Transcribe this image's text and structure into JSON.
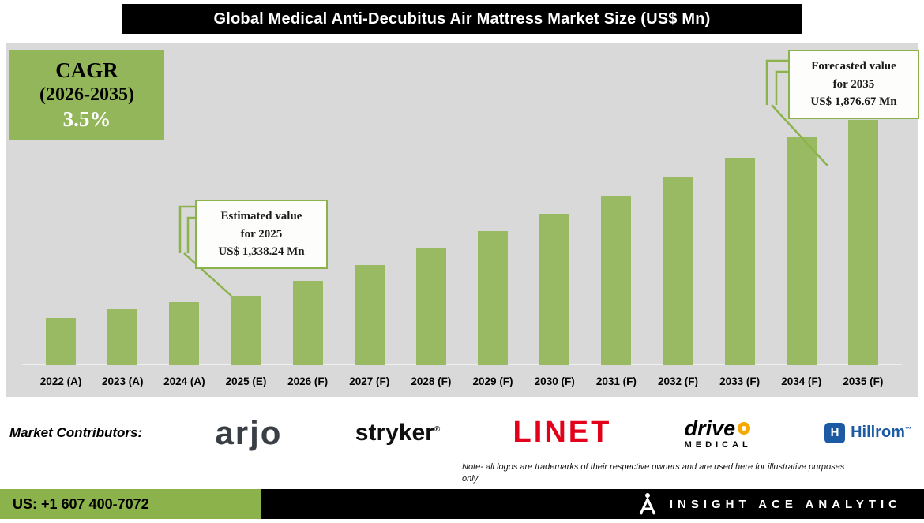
{
  "title": "Global Medical Anti-Decubitus Air Mattress Market Size (US$ Mn)",
  "cagr": {
    "label": "CAGR",
    "period": "(2026-2035)",
    "value": "3.5%"
  },
  "callouts": {
    "estimated": {
      "title": "Estimated value",
      "subtitle": "for 2025",
      "value": "US$ 1,338.24 Mn"
    },
    "forecasted": {
      "title": "Forecasted value",
      "subtitle": "for 2035",
      "value": "US$ 1,876.67 Mn"
    }
  },
  "chart_data": {
    "type": "bar",
    "title": "Global Medical Anti-Decubitus Air Mattress Market Size (US$ Mn)",
    "categories": [
      "2022 (A)",
      "2023 (A)",
      "2024 (A)",
      "2025 (E)",
      "2026 (F)",
      "2027 (F)",
      "2028 (F)",
      "2029 (F)",
      "2030 (F)",
      "2031 (F)",
      "2032 (F)",
      "2033 (F)",
      "2034 (F)",
      "2035 (F)"
    ],
    "values": [
      1270.5,
      1298.0,
      1318.5,
      1338.24,
      1385.08,
      1433.56,
      1483.73,
      1535.66,
      1589.41,
      1645.04,
      1702.61,
      1762.21,
      1823.88,
      1876.67
    ],
    "labeled_values": {
      "2025 (E)": 1338.24,
      "2035 (F)": 1876.67
    },
    "cagr_2026_2035_pct": 3.5,
    "ylabel": "US$ Mn",
    "ylim": [
      1126,
      2112
    ],
    "grid": false,
    "legend": false,
    "bar_color": "#9ab963",
    "annotations": [
      "Estimated value for 2025 US$ 1,338.24 Mn",
      "Forecasted value for 2035 US$ 1,876.67 Mn"
    ]
  },
  "contributors": {
    "label": "Market Contributors:",
    "logos": [
      {
        "name": "arjo",
        "text": "arjo"
      },
      {
        "name": "stryker",
        "text": "stryker",
        "mark": "®"
      },
      {
        "name": "linet",
        "text": "LINET"
      },
      {
        "name": "drive-medical",
        "text": "drive",
        "subtext": "MEDICAL"
      },
      {
        "name": "hillrom",
        "text": "Hillrom",
        "mark": "™",
        "icon_letter": "H"
      }
    ],
    "note_line1": "Note- all logos are trademarks of their respective owners and are used here for illustrative purposes",
    "note_line2": "only"
  },
  "footer": {
    "phone": "US: +1 607 400-7072",
    "brand": "INSIGHT ACE ANALYTIC"
  },
  "colors": {
    "green": "#93b65a",
    "bar_green": "#9ab963",
    "green_border": "#8bb24b",
    "chart_bg": "#d9d9d9",
    "linet_red": "#e2001a",
    "hillrom_blue": "#1c5ba3",
    "drive_orange": "#f5a800",
    "footer_green": "#8bb24b"
  }
}
